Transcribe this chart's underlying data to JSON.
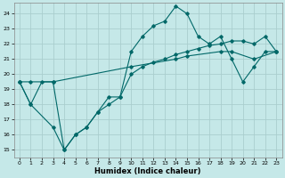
{
  "xlabel": "Humidex (Indice chaleur)",
  "background_color": "#c5e8e8",
  "grid_color": "#aacece",
  "line_color": "#006868",
  "xlim": [
    -0.5,
    23.5
  ],
  "ylim": [
    14.5,
    24.7
  ],
  "yticks": [
    15,
    16,
    17,
    18,
    19,
    20,
    21,
    22,
    23,
    24
  ],
  "xticks": [
    0,
    1,
    2,
    3,
    4,
    5,
    6,
    7,
    8,
    9,
    10,
    11,
    12,
    13,
    14,
    15,
    16,
    17,
    18,
    19,
    20,
    21,
    22,
    23
  ],
  "line1_x": [
    0,
    1,
    2,
    3,
    4,
    5,
    6,
    7,
    8,
    9,
    10,
    11,
    12,
    13,
    14,
    15,
    16,
    17,
    18,
    19,
    20,
    21,
    22,
    23
  ],
  "line1_y": [
    19.5,
    18.0,
    19.5,
    19.5,
    15.0,
    16.0,
    16.5,
    17.5,
    18.5,
    18.5,
    21.5,
    22.5,
    23.2,
    23.5,
    24.5,
    24.0,
    22.5,
    22.0,
    22.5,
    21.0,
    19.5,
    20.5,
    21.5,
    21.5
  ],
  "line2_x": [
    0,
    1,
    3,
    10,
    14,
    15,
    18,
    19,
    21,
    23
  ],
  "line2_y": [
    19.5,
    19.5,
    19.5,
    20.5,
    21.0,
    21.2,
    21.5,
    21.5,
    21.0,
    21.5
  ],
  "line3_x": [
    0,
    1,
    3,
    4,
    5,
    6,
    7,
    8,
    9,
    10,
    11,
    12,
    13,
    14,
    15,
    16,
    17,
    18,
    19,
    20,
    21,
    22,
    23
  ],
  "line3_y": [
    19.5,
    18.0,
    16.5,
    15.0,
    16.0,
    16.5,
    17.5,
    18.0,
    18.5,
    20.0,
    20.5,
    20.8,
    21.0,
    21.3,
    21.5,
    21.7,
    21.9,
    22.0,
    22.2,
    22.2,
    22.0,
    22.5,
    21.5
  ]
}
